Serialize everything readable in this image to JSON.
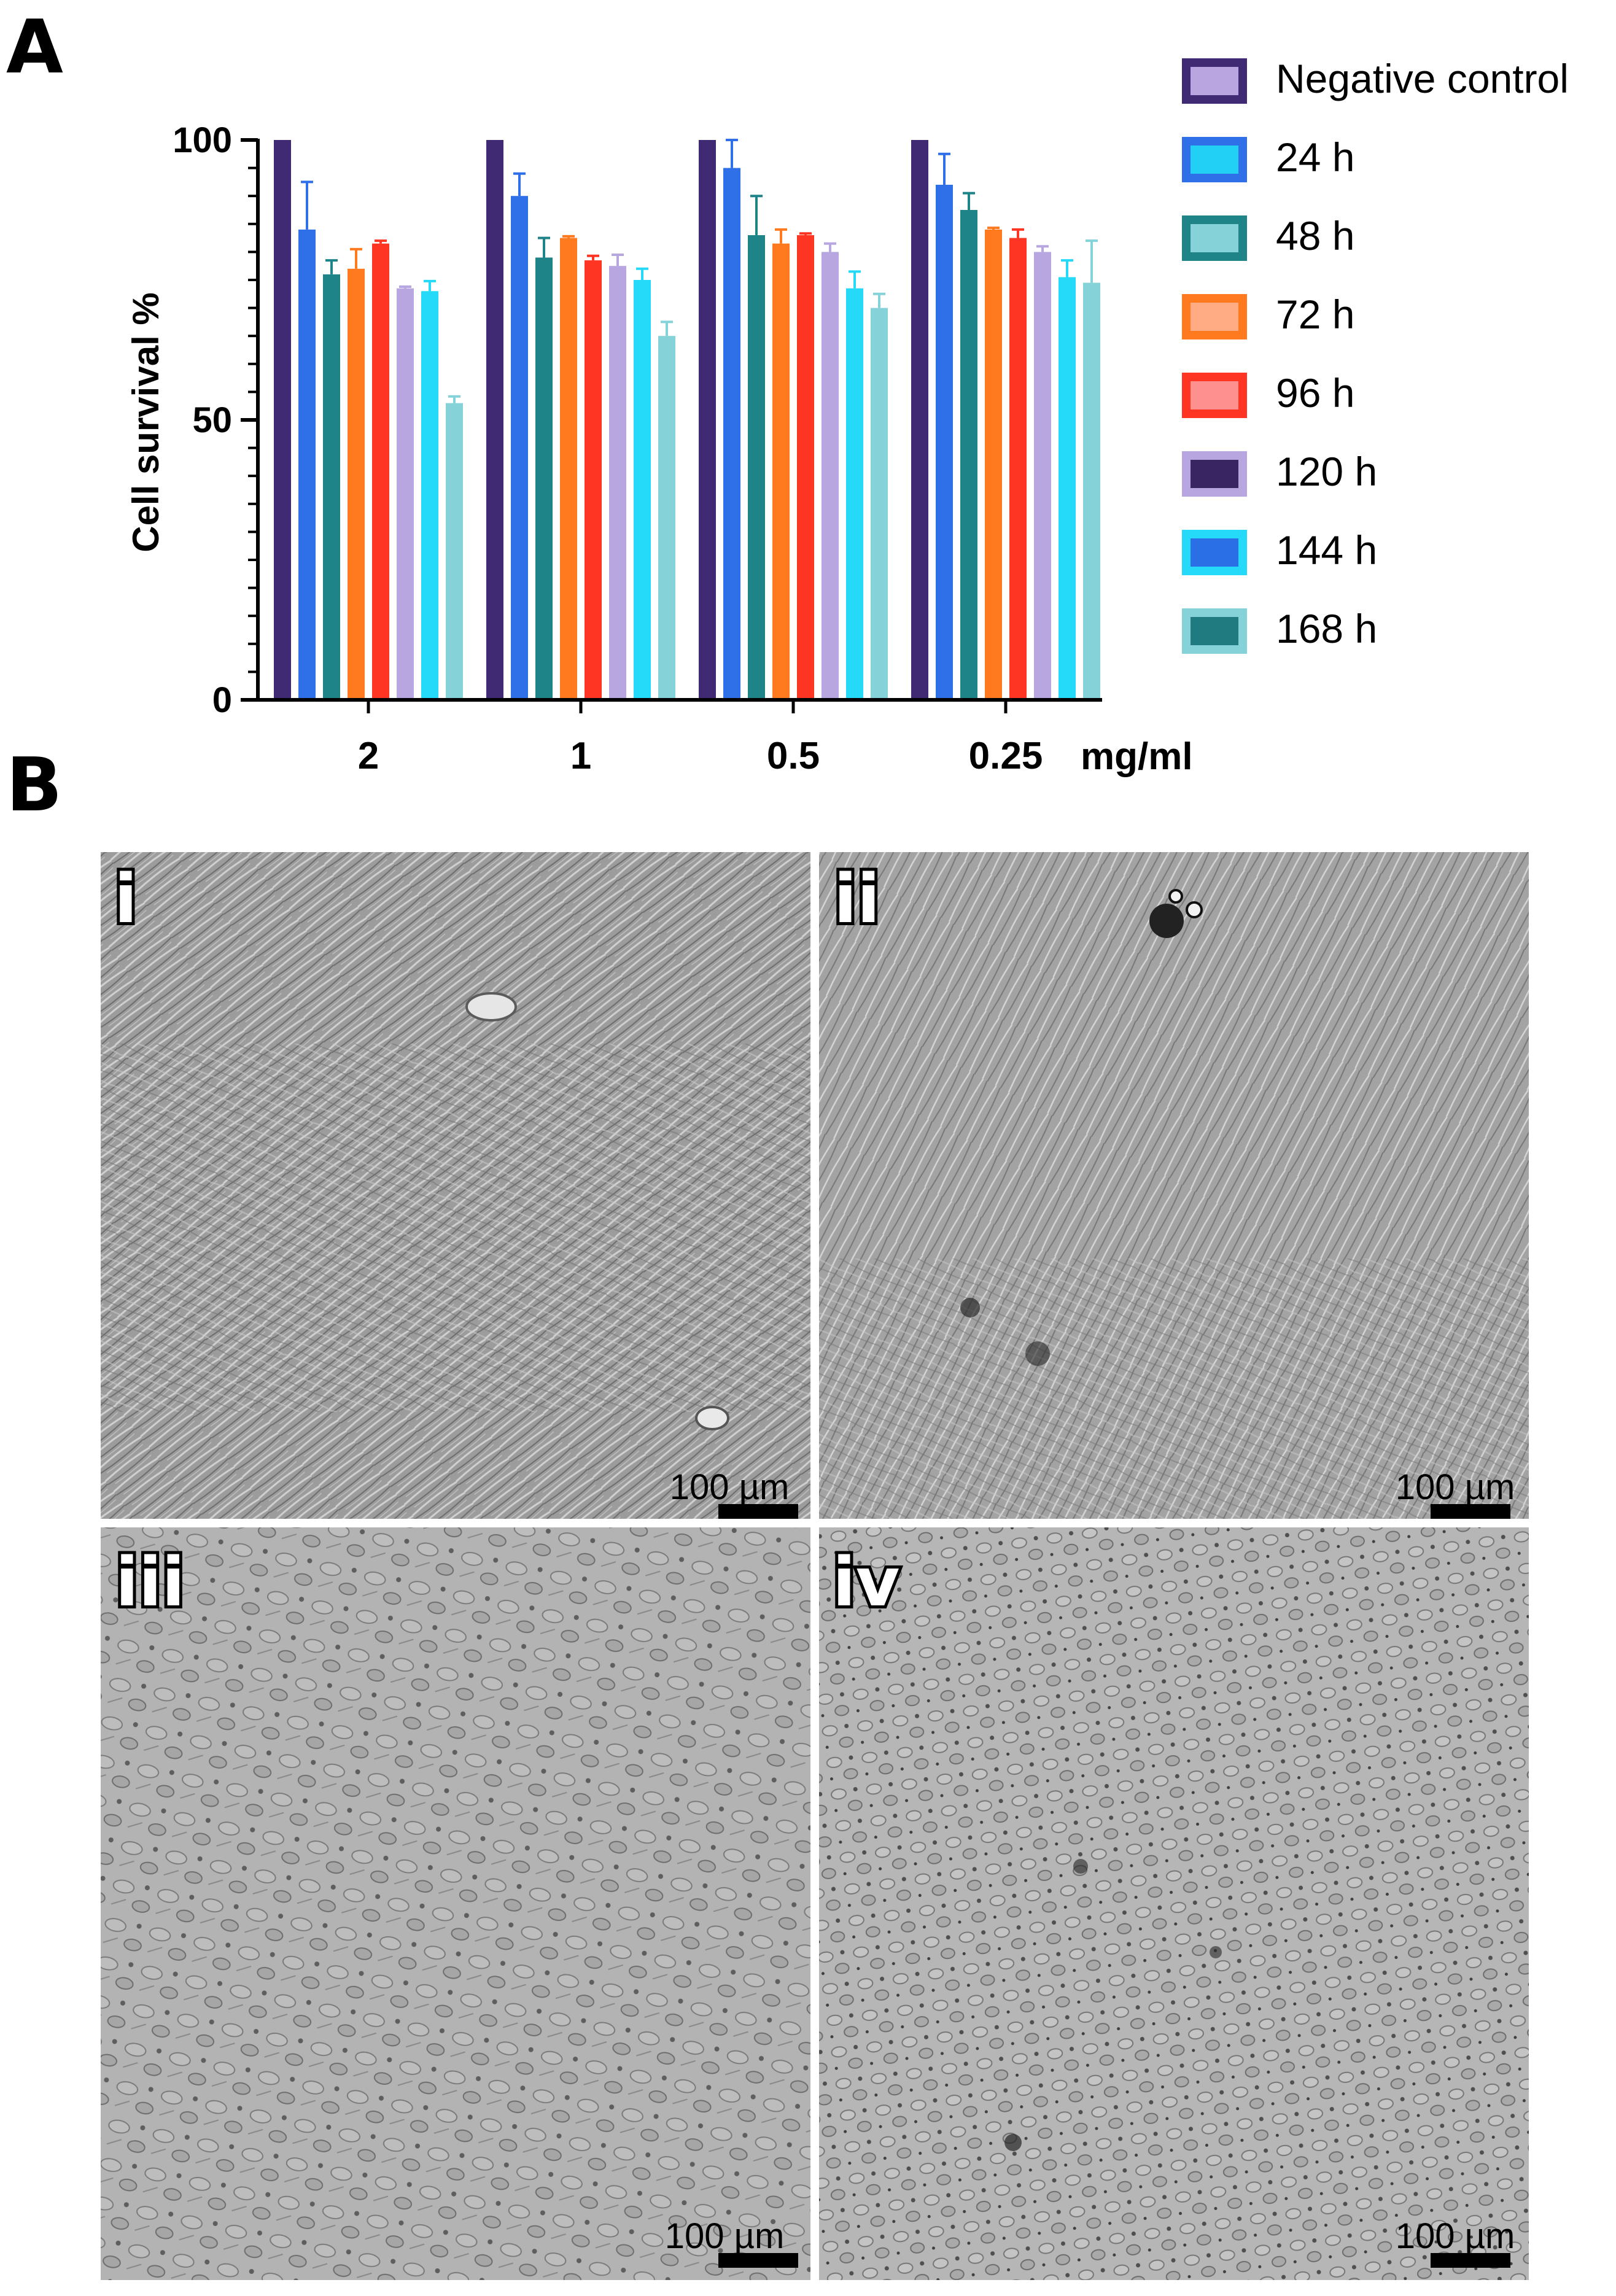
{
  "panels": {
    "a_letter": "A",
    "b_letter": "B"
  },
  "chart_data": {
    "type": "bar",
    "title": "",
    "ylabel": "Cell survival %",
    "xlabel": "",
    "x_unit_label": "mg/ml",
    "ylim": [
      0,
      100
    ],
    "yticks": [
      0,
      50,
      100
    ],
    "categories": [
      "2",
      "1",
      "0.5",
      "0.25"
    ],
    "legend_position": "right",
    "series": [
      {
        "name": "Negative control",
        "color": "#3f2a73",
        "legend_fill": "#b9a5e0",
        "legend_border": "#3f2a73",
        "values": [
          100,
          100,
          100,
          100
        ],
        "errors": [
          0,
          0,
          0,
          0
        ]
      },
      {
        "name": "24 h",
        "color": "#2f6fe8",
        "legend_fill": "#22d0f5",
        "legend_border": "#2f6fe8",
        "values": [
          84,
          90,
          95,
          92
        ],
        "errors": [
          8.5,
          4,
          5,
          5.5
        ]
      },
      {
        "name": "48 h",
        "color": "#1f8488",
        "legend_fill": "#86d2d9",
        "legend_border": "#1f8488",
        "values": [
          76,
          79,
          83,
          87.5
        ],
        "errors": [
          2.5,
          3.5,
          7,
          3
        ]
      },
      {
        "name": "72 h",
        "color": "#ff7a1f",
        "legend_fill": "#ffac85",
        "legend_border": "#ff7a1f",
        "values": [
          77,
          82.5,
          81.5,
          84
        ],
        "errors": [
          3.5,
          0.3,
          2.5,
          0.3
        ]
      },
      {
        "name": "96 h",
        "color": "#ff3524",
        "legend_fill": "#ff9090",
        "legend_border": "#ff3524",
        "values": [
          81.5,
          78.5,
          83,
          82.5
        ],
        "errors": [
          0.5,
          0.8,
          0.3,
          1.5
        ]
      },
      {
        "name": "120 h",
        "color": "#b7a6e0",
        "legend_fill": "#3a2563",
        "legend_border": "#b7a6e0",
        "values": [
          73.5,
          77.5,
          80,
          80
        ],
        "errors": [
          0.3,
          2,
          1.5,
          1
        ]
      },
      {
        "name": "144 h",
        "color": "#25daf8",
        "legend_fill": "#2a6fe5",
        "legend_border": "#25daf8",
        "values": [
          73,
          75,
          73.5,
          75.5
        ],
        "errors": [
          1.8,
          2,
          3,
          3
        ]
      },
      {
        "name": "168 h",
        "color": "#86d2d9",
        "legend_fill": "#1f7b80",
        "legend_border": "#86d2d9",
        "values": [
          53,
          65,
          70,
          74.5
        ],
        "errors": [
          1.2,
          2.5,
          2.5,
          7.5
        ]
      }
    ]
  },
  "micrographs": [
    {
      "label": "i",
      "scale_bar": "100 µm"
    },
    {
      "label": "ii",
      "scale_bar": "100 µm"
    },
    {
      "label": "iii",
      "scale_bar": "100 µm"
    },
    {
      "label": "iv",
      "scale_bar": "100 µm"
    }
  ]
}
